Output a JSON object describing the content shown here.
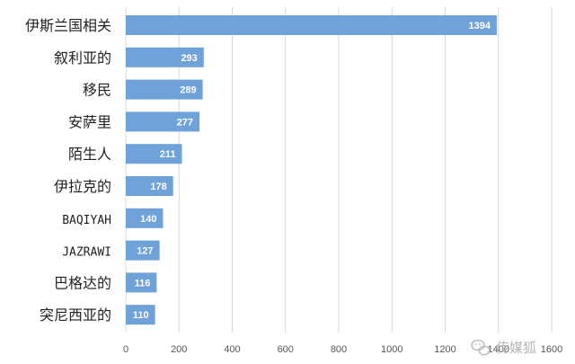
{
  "chart_data": {
    "type": "bar",
    "orientation": "horizontal",
    "categories": [
      "伊斯兰国相关",
      "叙利亚的",
      "移民",
      "安萨里",
      "陌生人",
      "伊拉克的",
      "BAQIYAH",
      "JAZRAWI",
      "巴格达的",
      "突尼西亚的"
    ],
    "values": [
      1394,
      293,
      289,
      277,
      211,
      178,
      140,
      127,
      116,
      110
    ],
    "data_labels": [
      "1394",
      "293",
      "289",
      "277",
      "211",
      "178",
      "140",
      "127",
      "116",
      "110"
    ],
    "xticks": [
      0,
      200,
      400,
      600,
      800,
      1000,
      1200,
      1400,
      1600
    ],
    "xtick_labels": [
      "0",
      "200",
      "400",
      "600",
      "800",
      "1000",
      "1200",
      "1400",
      "1600"
    ],
    "xlim": [
      0,
      1600
    ],
    "grid": "vertical",
    "legend": "none",
    "bar_color": "#6fa2d8",
    "grid_color": "#d9d9d9"
  },
  "watermark": {
    "text": "传媒狐",
    "icon": "wechat-icon",
    "color": "#b5b5b5"
  }
}
